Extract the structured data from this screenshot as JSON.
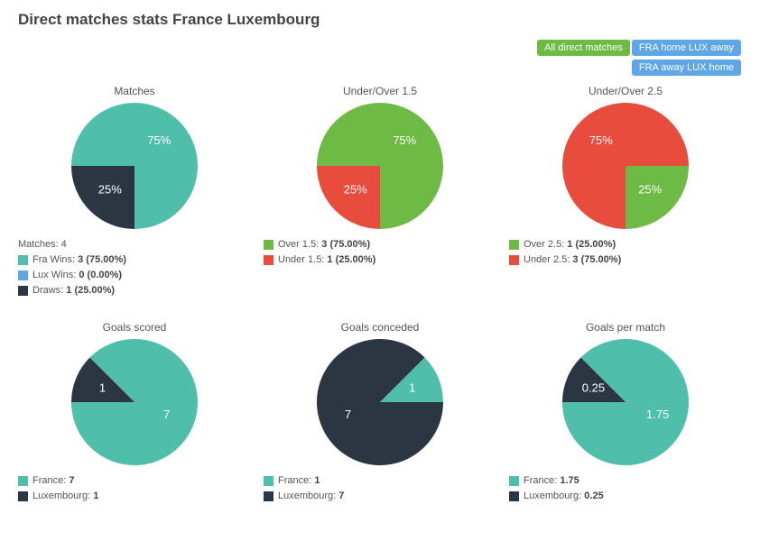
{
  "title": "Direct matches stats France Luxembourg",
  "filters": [
    {
      "label": "All direct matches",
      "style": "green"
    },
    {
      "label": "FRA home LUX away",
      "style": "blue"
    },
    {
      "label": "FRA away LUX home",
      "style": "blue"
    }
  ],
  "palette": {
    "teal": "#4fbfab",
    "dark": "#2c3643",
    "blue": "#5ea6e6",
    "green": "#6dbb45",
    "red": "#e84c3d",
    "slice_label": "#ffffff",
    "text": "#555555"
  },
  "pie_radius": 70,
  "charts": [
    {
      "title": "Matches",
      "slices": [
        {
          "value": 75,
          "label": "75%",
          "color": "#4fbfab"
        },
        {
          "value": 25,
          "label": "25%",
          "color": "#2c3643"
        }
      ],
      "legend_header": "Matches: 4",
      "legend": [
        {
          "color": "#4fbfab",
          "text": "Fra Wins:",
          "bold": "3 (75.00%)"
        },
        {
          "color": "#5ea6e6",
          "text": "Lux Wins:",
          "bold": "0 (0.00%)"
        },
        {
          "color": "#2c3643",
          "text": "Draws:",
          "bold": "1 (25.00%)"
        }
      ]
    },
    {
      "title": "Under/Over 1.5",
      "slices": [
        {
          "value": 75,
          "label": "75%",
          "color": "#6dbb45"
        },
        {
          "value": 25,
          "label": "25%",
          "color": "#e84c3d"
        }
      ],
      "legend": [
        {
          "color": "#6dbb45",
          "text": "Over 1.5:",
          "bold": "3 (75.00%)"
        },
        {
          "color": "#e84c3d",
          "text": "Under 1.5:",
          "bold": "1 (25.00%)"
        }
      ]
    },
    {
      "title": "Under/Over 2.5",
      "slices": [
        {
          "value": 25,
          "label": "25%",
          "color": "#6dbb45"
        },
        {
          "value": 75,
          "label": "75%",
          "color": "#e84c3d"
        }
      ],
      "legend": [
        {
          "color": "#6dbb45",
          "text": "Over 2.5:",
          "bold": "1 (25.00%)"
        },
        {
          "color": "#e84c3d",
          "text": "Under 2.5:",
          "bold": "3 (75.00%)"
        }
      ]
    },
    {
      "title": "Goals scored",
      "slices": [
        {
          "value": 87.5,
          "label": "7",
          "color": "#4fbfab"
        },
        {
          "value": 12.5,
          "label": "1",
          "color": "#2c3643"
        }
      ],
      "legend": [
        {
          "color": "#4fbfab",
          "text": "France:",
          "bold": "7"
        },
        {
          "color": "#2c3643",
          "text": "Luxembourg:",
          "bold": "1"
        }
      ]
    },
    {
      "title": "Goals conceded",
      "slices": [
        {
          "value": 12.5,
          "label": "1",
          "color": "#4fbfab"
        },
        {
          "value": 87.5,
          "label": "7",
          "color": "#2c3643"
        }
      ],
      "legend": [
        {
          "color": "#4fbfab",
          "text": "France:",
          "bold": "1"
        },
        {
          "color": "#2c3643",
          "text": "Luxembourg:",
          "bold": "7"
        }
      ]
    },
    {
      "title": "Goals per match",
      "slices": [
        {
          "value": 87.5,
          "label": "1.75",
          "color": "#4fbfab"
        },
        {
          "value": 12.5,
          "label": "0.25",
          "color": "#2c3643"
        }
      ],
      "legend": [
        {
          "color": "#4fbfab",
          "text": "France:",
          "bold": "1.75"
        },
        {
          "color": "#2c3643",
          "text": "Luxembourg:",
          "bold": "0.25"
        }
      ]
    }
  ]
}
